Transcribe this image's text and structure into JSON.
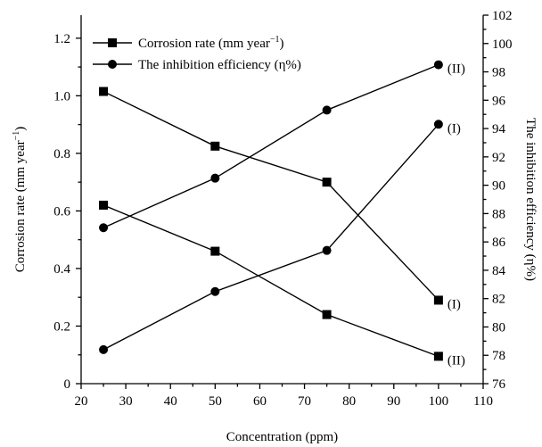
{
  "chart_data": {
    "type": "line",
    "xlabel": "Concentration (ppm)",
    "ylabel_left": "Corrosion rate (mm year",
    "ylabel_left_sup": "−1",
    "ylabel_left_close": ")",
    "ylabel_right": "The inhibition efficiency (η%)",
    "xlim": [
      20,
      110
    ],
    "ylim_left": [
      0,
      1.28
    ],
    "ylim_right": [
      76,
      102
    ],
    "x_ticks": [
      20,
      30,
      40,
      50,
      60,
      70,
      80,
      90,
      100,
      110
    ],
    "y_left_ticks": [
      "0",
      "0.2",
      "0.4",
      "0.6",
      "0.8",
      "1.0",
      "1.2"
    ],
    "y_right_ticks": [
      "76",
      "78",
      "80",
      "82",
      "84",
      "86",
      "88",
      "90",
      "92",
      "94",
      "96",
      "98",
      "100",
      "102"
    ],
    "legend": [
      {
        "label": "Corrosion rate (mm year",
        "sup": "−1",
        "close": ")",
        "marker": "square"
      },
      {
        "label": "The inhibition efficiency (η%)",
        "marker": "circle"
      }
    ],
    "series": [
      {
        "name": "Corrosion rate (mm year−1)",
        "tag": "(I)",
        "axis": "left",
        "marker": "square",
        "x": [
          25,
          50,
          75,
          100
        ],
        "values": [
          1.015,
          0.825,
          0.7,
          0.29
        ]
      },
      {
        "name": "Corrosion rate (mm year−1)",
        "tag": "(II)",
        "axis": "left",
        "marker": "square",
        "x": [
          25,
          50,
          75,
          100
        ],
        "values": [
          0.62,
          0.46,
          0.24,
          0.095
        ]
      },
      {
        "name": "The inhibition efficiency (η%)",
        "tag": "(I)",
        "axis": "right",
        "marker": "circle",
        "x": [
          25,
          50,
          75,
          100
        ],
        "values": [
          78.4,
          82.5,
          85.4,
          94.3
        ]
      },
      {
        "name": "The inhibition efficiency (η%)",
        "tag": "(II)",
        "axis": "right",
        "marker": "circle",
        "x": [
          25,
          50,
          75,
          100
        ],
        "values": [
          87.0,
          90.5,
          95.3,
          98.5
        ]
      }
    ]
  }
}
